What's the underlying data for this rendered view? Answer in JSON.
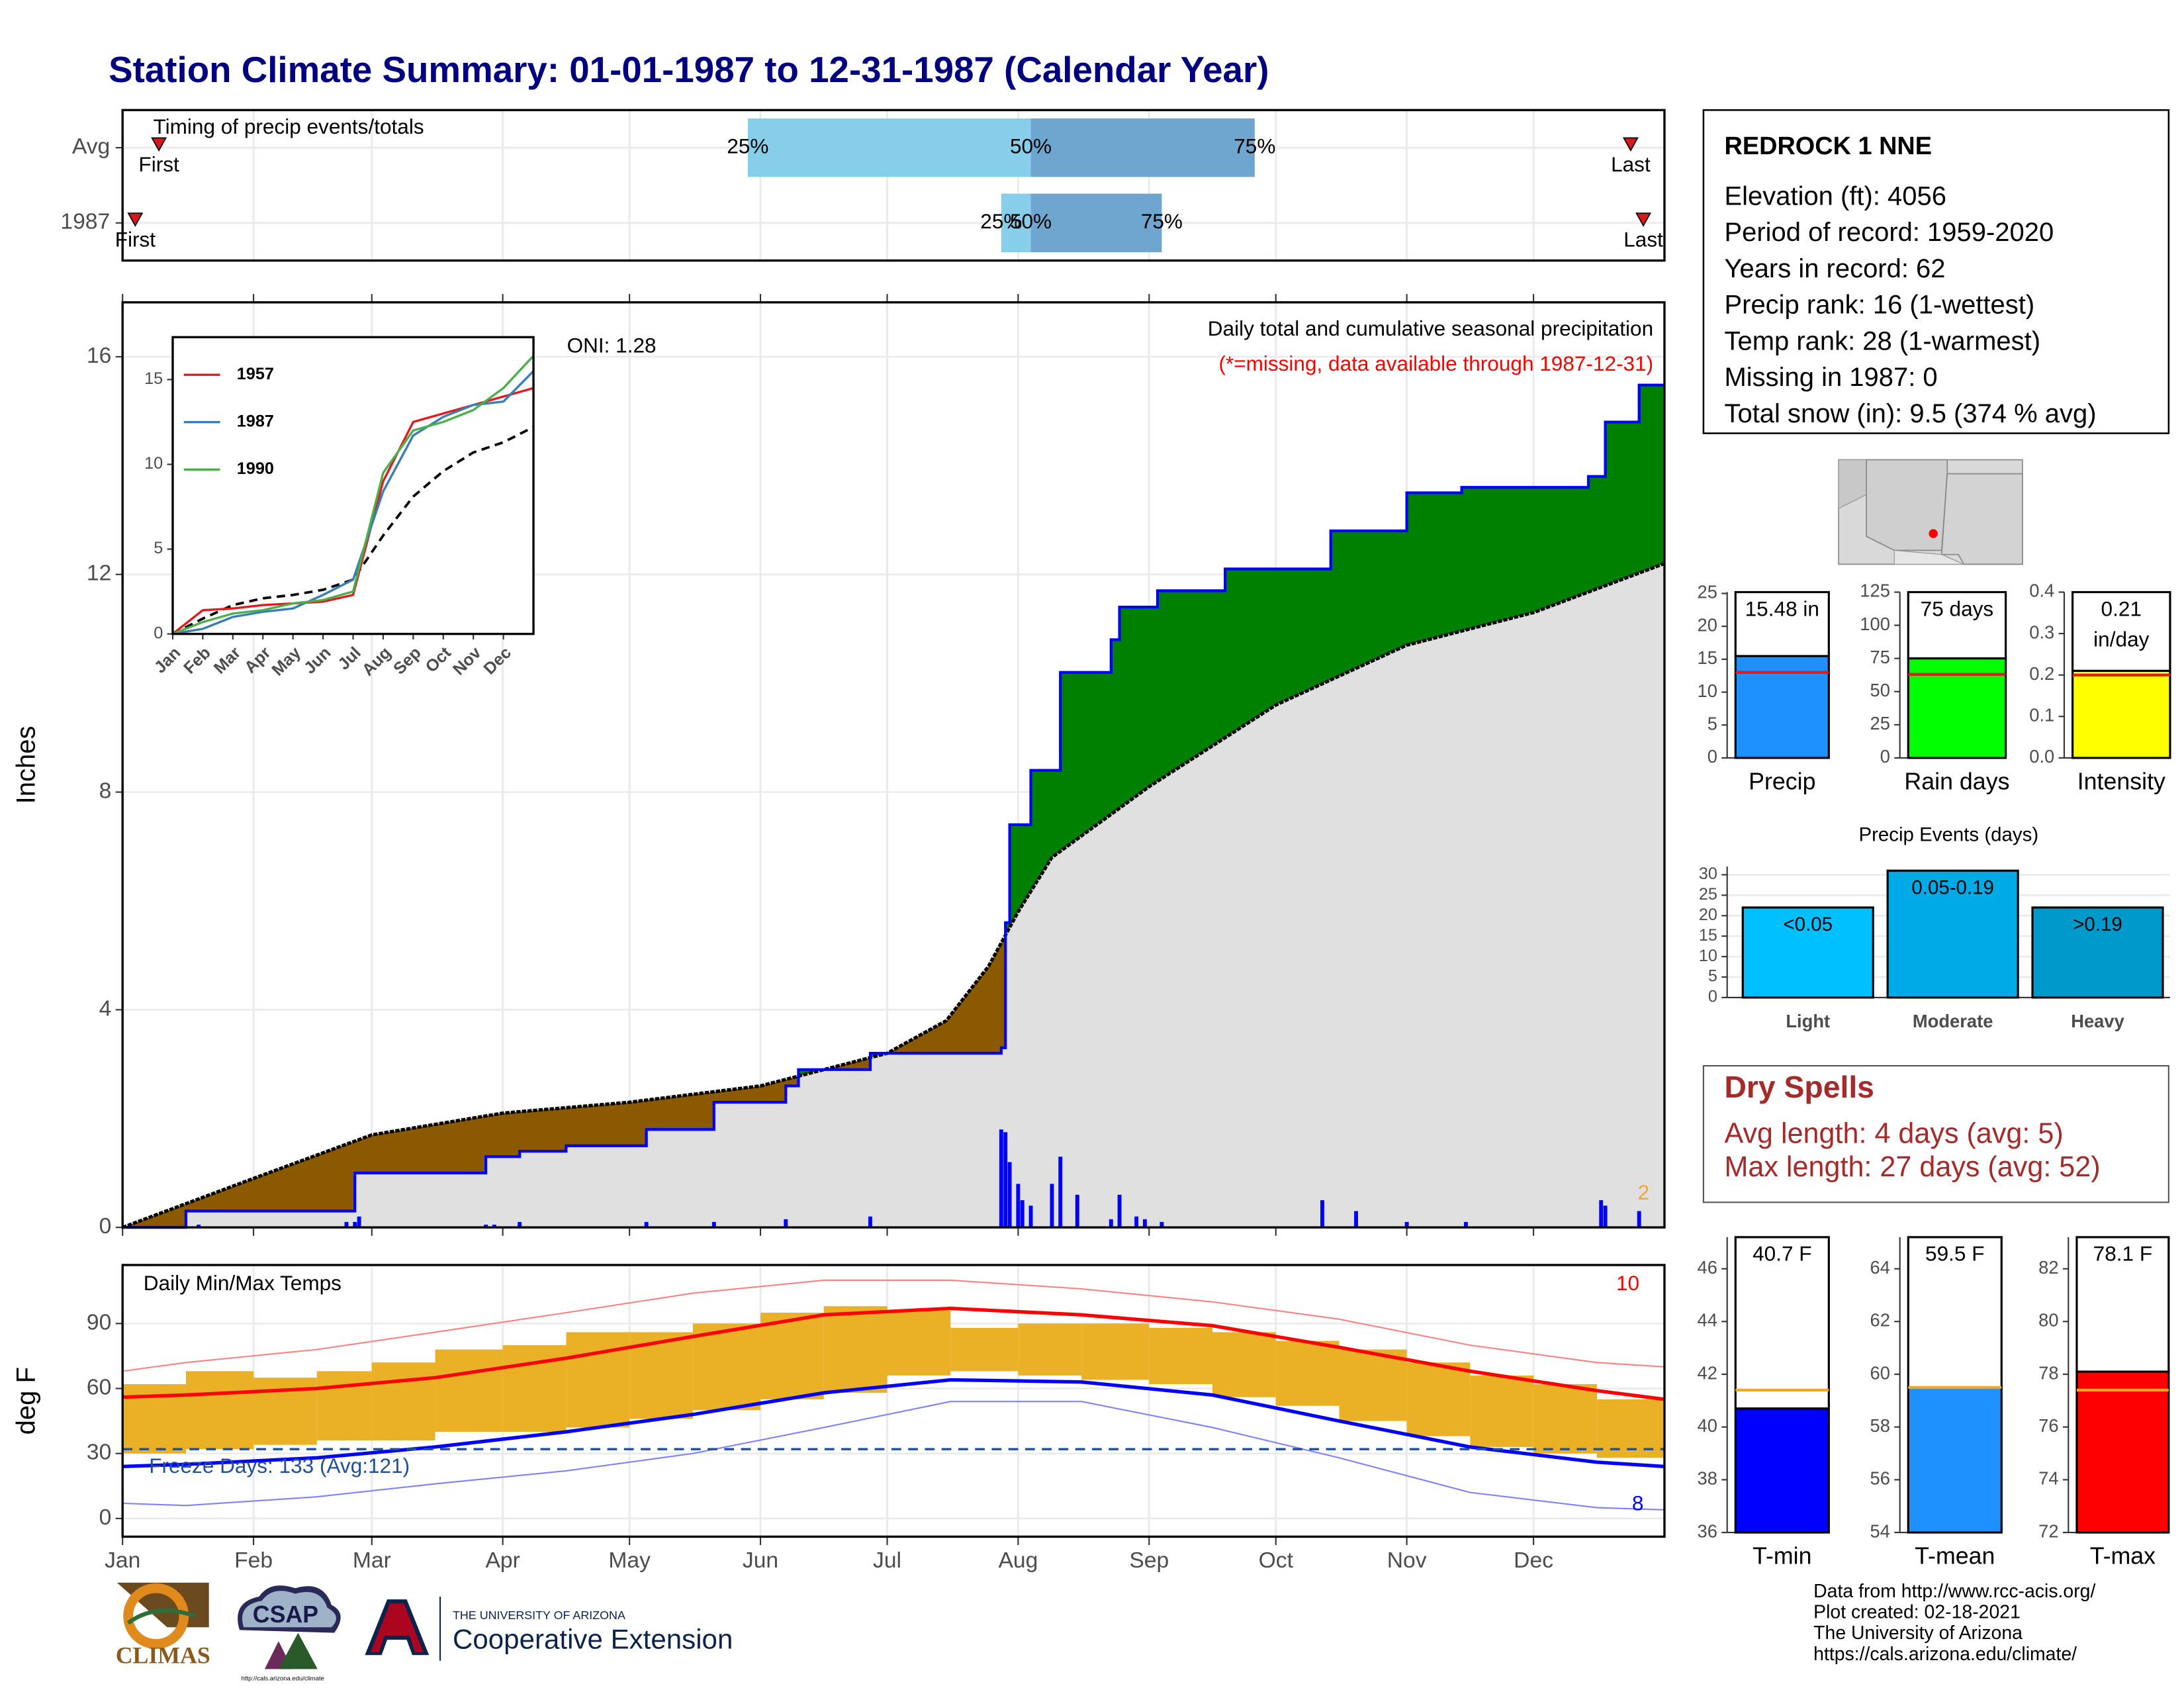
{
  "title": "Station Climate Summary: 01-01-1987 to 12-31-1987 (Calendar Year)",
  "station": {
    "name": "REDROCK 1 NNE",
    "lines": [
      "Elevation (ft): 4056",
      "Period of record: 1959-2020",
      "Years in record: 62",
      "Precip rank: 16 (1-wettest)",
      "Temp rank: 28 (1-warmest)",
      "Missing in 1987: 0",
      "Total snow (in): 9.5 (374 % avg)"
    ]
  },
  "dry_spells": {
    "title": "Dry Spells",
    "lines": [
      "Avg length: 4 days (avg: 5)",
      "Max length: 27 days (avg: 52)"
    ]
  },
  "footer": {
    "lines": [
      "Data from http://www.rcc-acis.org/",
      "Plot created: 02-18-2021",
      "The University of Arizona",
      "https://cals.arizona.edu/climate/"
    ]
  },
  "logos": {
    "climas": "CLIMAS",
    "csap": "CSAP",
    "csap_url": "http://cals.arizona.edu/climate",
    "ua": "THE UNIVERSITY OF ARIZONA",
    "coop": "Cooperative Extension"
  },
  "chart_data": [
    {
      "type": "timing",
      "title": "Timing of precip events/totals",
      "categories": [
        "Avg",
        "1987"
      ],
      "xlim": [
        0,
        365
      ],
      "xticks": [
        0,
        31,
        59,
        90,
        120,
        151,
        181,
        212,
        243,
        273,
        304,
        334
      ],
      "series": [
        {
          "name": "First",
          "color": "#d7191c",
          "values": [
            8.6,
            3
          ]
        },
        {
          "name": "25%",
          "color": "#87ceeb",
          "values": [
            148,
            208
          ]
        },
        {
          "name": "50%",
          "color": "#6fa6cf",
          "values": [
            215,
            215
          ]
        },
        {
          "name": "75%",
          "values": [
            268,
            246
          ]
        },
        {
          "name": "Last",
          "color": "#d7191c",
          "values": [
            357,
            360
          ]
        }
      ]
    },
    {
      "type": "precip",
      "ylabel": "Inches",
      "annotation": "Daily total and cumulative seasonal precipitation",
      "note": "(*=missing, data available through 1987-12-31)",
      "oni": "ONI: 1.28",
      "marker_label": "2",
      "xlim": [
        0,
        365
      ],
      "ylim": [
        0,
        17
      ],
      "yticks": [
        0,
        4,
        8,
        12,
        16
      ],
      "xticks": [
        0,
        31,
        59,
        90,
        120,
        151,
        181,
        212,
        243,
        273,
        304,
        334
      ],
      "grid": true,
      "cumulative": {
        "color": "#0000ff",
        "x": [
          0,
          15,
          15,
          55,
          55,
          86,
          86,
          94,
          94,
          105,
          105,
          124,
          124,
          140,
          140,
          157,
          157,
          160,
          160,
          177,
          177,
          208,
          208,
          209,
          209,
          210,
          210,
          215,
          215,
          222,
          222,
          234,
          234,
          236,
          236,
          245,
          245,
          261,
          261,
          286,
          286,
          304,
          304,
          317,
          317,
          347,
          347,
          351,
          351,
          359,
          359,
          365
        ],
        "values": [
          0,
          0,
          0.3,
          0.3,
          1.0,
          1.0,
          1.3,
          1.3,
          1.4,
          1.4,
          1.5,
          1.5,
          1.8,
          1.8,
          2.3,
          2.3,
          2.6,
          2.6,
          2.9,
          2.9,
          3.2,
          3.2,
          3.3,
          3.3,
          5.6,
          5.6,
          7.4,
          7.4,
          8.4,
          8.4,
          10.2,
          10.2,
          10.8,
          10.8,
          11.4,
          11.4,
          11.7,
          11.7,
          12.1,
          12.1,
          12.8,
          12.8,
          13.5,
          13.5,
          13.6,
          13.6,
          13.8,
          13.8,
          14.8,
          14.8,
          15.48,
          15.48
        ]
      },
      "average": {
        "color": "#000000",
        "x": [
          0,
          31,
          59,
          90,
          120,
          151,
          181,
          195,
          205,
          212,
          220,
          243,
          273,
          304,
          334,
          365
        ],
        "values": [
          0,
          0.9,
          1.7,
          2.1,
          2.3,
          2.6,
          3.2,
          3.8,
          4.8,
          5.8,
          6.8,
          8.1,
          9.6,
          10.7,
          11.3,
          12.2
        ]
      },
      "above_color": "#008000",
      "below_color": "#8b5a00",
      "base_color": "#e0e0e0",
      "daily": {
        "color": "#0000ff",
        "x": [
          18,
          53,
          55,
          56,
          86,
          88,
          94,
          124,
          140,
          157,
          177,
          208,
          209,
          210,
          212,
          213,
          215,
          220,
          222,
          226,
          234,
          236,
          240,
          242,
          246,
          284,
          292,
          304,
          318,
          350,
          351,
          359
        ],
        "values": [
          0.05,
          0.1,
          0.1,
          0.2,
          0.05,
          0.05,
          0.1,
          0.1,
          0.1,
          0.15,
          0.2,
          1.8,
          1.75,
          1.2,
          0.8,
          0.5,
          0.4,
          0.8,
          1.3,
          0.6,
          0.15,
          0.6,
          0.2,
          0.15,
          0.1,
          0.5,
          0.3,
          0.1,
          0.1,
          0.5,
          0.4,
          0.3
        ]
      }
    },
    {
      "type": "line",
      "x": [
        0,
        1,
        2,
        3,
        4,
        5,
        6,
        7,
        8,
        9,
        10,
        11,
        12
      ],
      "xlim": [
        0,
        12
      ],
      "ylim": [
        0,
        17.5
      ],
      "yticks": [
        0,
        5,
        10,
        15
      ],
      "xticks": [
        {
          "value": 0,
          "label": "Jan"
        },
        {
          "value": 1,
          "label": "Feb"
        },
        {
          "value": 2,
          "label": "Mar"
        },
        {
          "value": 3,
          "label": "Apr"
        },
        {
          "value": 4,
          "label": "May"
        },
        {
          "value": 5,
          "label": "Jun"
        },
        {
          "value": 6,
          "label": "Jul"
        },
        {
          "value": 7,
          "label": "Aug"
        },
        {
          "value": 8,
          "label": "Sep"
        },
        {
          "value": 9,
          "label": "Oct"
        },
        {
          "value": 10,
          "label": "Nov"
        },
        {
          "value": 11,
          "label": "Dec"
        }
      ],
      "series": [
        {
          "name": "1957",
          "color": "#e41a1c",
          "values": [
            0,
            1.4,
            1.5,
            1.7,
            1.8,
            1.9,
            2.3,
            9.0,
            12.5,
            13.0,
            13.5,
            14.0,
            14.5
          ]
        },
        {
          "name": "1987",
          "color": "#377eb8",
          "values": [
            0,
            0.3,
            1.0,
            1.3,
            1.5,
            2.3,
            3.2,
            8.4,
            11.7,
            12.8,
            13.5,
            13.7,
            15.5
          ]
        },
        {
          "name": "1990",
          "color": "#4daf4a",
          "values": [
            0,
            0.7,
            1.2,
            1.4,
            1.8,
            2.0,
            2.5,
            9.5,
            12.0,
            12.5,
            13.2,
            14.5,
            16.4
          ]
        }
      ],
      "average": {
        "color": "#000000",
        "values": [
          0,
          0.9,
          1.7,
          2.1,
          2.3,
          2.6,
          3.2,
          5.8,
          8.1,
          9.6,
          10.7,
          11.3,
          12.2
        ]
      }
    },
    {
      "type": "bar",
      "categories": [
        "Precip"
      ],
      "values": [
        15.48
      ],
      "value_labels": [
        "15.48 in"
      ],
      "reference": 13,
      "color": "#1e90ff",
      "reference_color": "#e31a1c",
      "ylim": [
        0,
        25.2
      ],
      "yticks": [
        0,
        5,
        10,
        15,
        20,
        25
      ]
    },
    {
      "type": "bar",
      "categories": [
        "Rain days"
      ],
      "values": [
        75
      ],
      "value_labels": [
        "75 days"
      ],
      "reference": 63,
      "color": "#00ff00",
      "reference_color": "#e31a1c",
      "ylim": [
        0,
        125
      ],
      "yticks": [
        0,
        25,
        50,
        75,
        100,
        125
      ]
    },
    {
      "type": "bar",
      "categories": [
        "Intensity"
      ],
      "values": [
        0.21
      ],
      "value_labels": [
        "0.21 in/day"
      ],
      "reference": 0.2,
      "color": "#ffff00",
      "reference_color": "#e31a1c",
      "ylim": [
        0,
        0.4
      ],
      "yticks": [
        {
          "value": 0,
          "label": "0.0"
        },
        0.1,
        0.2,
        0.3,
        0.4
      ]
    },
    {
      "type": "bar",
      "title": "Precip Events (days)",
      "categories": [
        "Light",
        "Moderate",
        "Heavy"
      ],
      "values": [
        22,
        31,
        22
      ],
      "bar_labels": [
        "<0.05",
        "0.05-0.19",
        ">0.19"
      ],
      "colors": [
        "#00bfff",
        "#00aae6",
        "#0099cc"
      ],
      "ylim": [
        0,
        32
      ],
      "yticks": [
        0,
        5,
        10,
        15,
        20,
        25,
        30
      ],
      "grid": true
    },
    {
      "type": "temps",
      "title": "Daily Min/Max Temps",
      "ylabel": "deg F",
      "xlim": [
        0,
        365
      ],
      "ylim": [
        -8.4,
        117
      ],
      "yticks": [
        0,
        30,
        60,
        90
      ],
      "grid": true,
      "xticks": [
        {
          "value": 0,
          "label": "Jan"
        },
        {
          "value": 31,
          "label": "Feb"
        },
        {
          "value": 59,
          "label": "Mar"
        },
        {
          "value": 90,
          "label": "Apr"
        },
        {
          "value": 120,
          "label": "May"
        },
        {
          "value": 151,
          "label": "Jun"
        },
        {
          "value": 181,
          "label": "Jul"
        },
        {
          "value": 212,
          "label": "Aug"
        },
        {
          "value": 243,
          "label": "Sep"
        },
        {
          "value": 273,
          "label": "Oct"
        },
        {
          "value": 304,
          "label": "Nov"
        },
        {
          "value": 334,
          "label": "Dec"
        }
      ],
      "ranges": {
        "color": "#eab126",
        "x": [
          0,
          15,
          31,
          46,
          59,
          74,
          90,
          105,
          120,
          135,
          151,
          166,
          181,
          196,
          212,
          227,
          243,
          258,
          273,
          288,
          304,
          319,
          334,
          349
        ],
        "low": [
          30,
          32,
          34,
          36,
          36,
          40,
          40,
          42,
          46,
          50,
          55,
          58,
          66,
          68,
          66,
          64,
          62,
          56,
          52,
          45,
          38,
          33,
          30,
          28
        ],
        "high": [
          62,
          68,
          65,
          68,
          72,
          78,
          80,
          86,
          86,
          90,
          95,
          98,
          96,
          88,
          90,
          90,
          88,
          86,
          82,
          78,
          72,
          66,
          62,
          55
        ]
      },
      "line_x": [
        0,
        15,
        46,
        74,
        105,
        135,
        166,
        196,
        227,
        258,
        288,
        319,
        349,
        365
      ],
      "lines": [
        {
          "color": "#ff0000",
          "width": 2.5,
          "values": [
            56,
            57,
            60,
            65,
            74,
            84,
            94,
            97,
            94,
            89,
            79,
            68,
            59,
            55
          ]
        },
        {
          "color": "#0000ff",
          "width": 2.5,
          "values": [
            24,
            25,
            28,
            33,
            40,
            48,
            58,
            64,
            63,
            57,
            45,
            33,
            26,
            24
          ]
        },
        {
          "color": "#ff8080",
          "width": 1,
          "values": [
            68,
            72,
            78,
            86,
            95,
            104,
            110,
            110,
            106,
            100,
            92,
            80,
            72,
            70
          ]
        },
        {
          "color": "#8080ff",
          "width": 1,
          "values": [
            7,
            6,
            10,
            16,
            22,
            30,
            42,
            54,
            54,
            42,
            28,
            12,
            5,
            4
          ]
        }
      ],
      "freeze_line": 32,
      "freeze_color": "#1f4e9c",
      "freeze_text": "Freeze Days: 133 (Avg:121)",
      "max_count": 10,
      "min_count": 8
    },
    {
      "type": "bar",
      "categories": [
        "T-min"
      ],
      "values": [
        40.7
      ],
      "value_labels": [
        "40.7 F"
      ],
      "reference": 41.4,
      "color": "#0000ff",
      "reference_color": "#f5a623",
      "ylim": [
        36,
        47.2
      ],
      "yticks": [
        36,
        38,
        40,
        42,
        44,
        46
      ]
    },
    {
      "type": "bar",
      "categories": [
        "T-mean"
      ],
      "values": [
        59.5
      ],
      "value_labels": [
        "59.5 F"
      ],
      "reference": 59.5,
      "color": "#1e90ff",
      "reference_color": "#f5a623",
      "ylim": [
        54,
        65.2
      ],
      "yticks": [
        54,
        56,
        58,
        60,
        62,
        64
      ]
    },
    {
      "type": "bar",
      "categories": [
        "T-max"
      ],
      "values": [
        78.1
      ],
      "value_labels": [
        "78.1 F"
      ],
      "reference": 77.4,
      "color": "#ff0000",
      "reference_color": "#f5a623",
      "ylim": [
        72,
        83.2
      ],
      "yticks": [
        72,
        74,
        76,
        78,
        80,
        82
      ]
    }
  ]
}
